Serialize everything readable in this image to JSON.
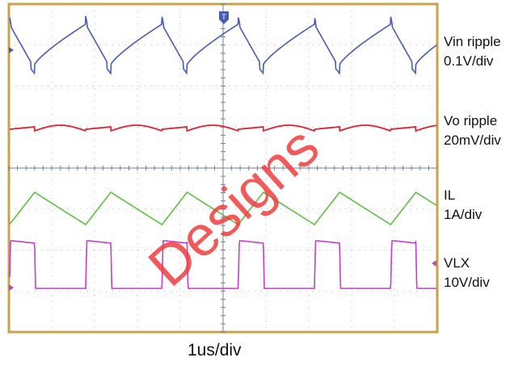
{
  "chart_data": {
    "type": "line",
    "title": "",
    "xlabel": "1us/div",
    "ylabel": "",
    "grid": true,
    "x_divisions": 10,
    "y_divisions": 8,
    "channels": [
      {
        "name": "Vin ripple",
        "scale": "0.1V/div",
        "color": "#4a5bb5",
        "shape": "sawtooth-ramp-down-with-spike",
        "period_div": 1.78
      },
      {
        "name": "Vo ripple",
        "scale": "20mV/div",
        "color": "#e02030",
        "shape": "arched-ripple",
        "period_div": 1.78
      },
      {
        "name": "IL",
        "scale": "1A/div",
        "color": "#5cc040",
        "shape": "triangle",
        "period_div": 1.78
      },
      {
        "name": "VLX",
        "scale": "10V/div",
        "color": "#c040c8",
        "shape": "pulse",
        "period_div": 1.78
      }
    ]
  },
  "labels": {
    "ch1_name": "Vin ripple",
    "ch1_scale": "0.1V/div",
    "ch2_name": "Vo ripple",
    "ch2_scale": "20mV/div",
    "ch3_name": "IL",
    "ch3_scale": "1A/div",
    "ch4_name": "VLX",
    "ch4_scale": "10V/div",
    "timebase": "1us/div",
    "trigger_marker": "T"
  },
  "watermark": "Designs",
  "colors": {
    "frame": "#c9a24a",
    "grid": "#9a9a9a",
    "ch1": "#4a5bb5",
    "ch2": "#e02030",
    "ch3": "#5cc040",
    "ch4": "#c040c8",
    "watermark": "#f03c3c"
  }
}
